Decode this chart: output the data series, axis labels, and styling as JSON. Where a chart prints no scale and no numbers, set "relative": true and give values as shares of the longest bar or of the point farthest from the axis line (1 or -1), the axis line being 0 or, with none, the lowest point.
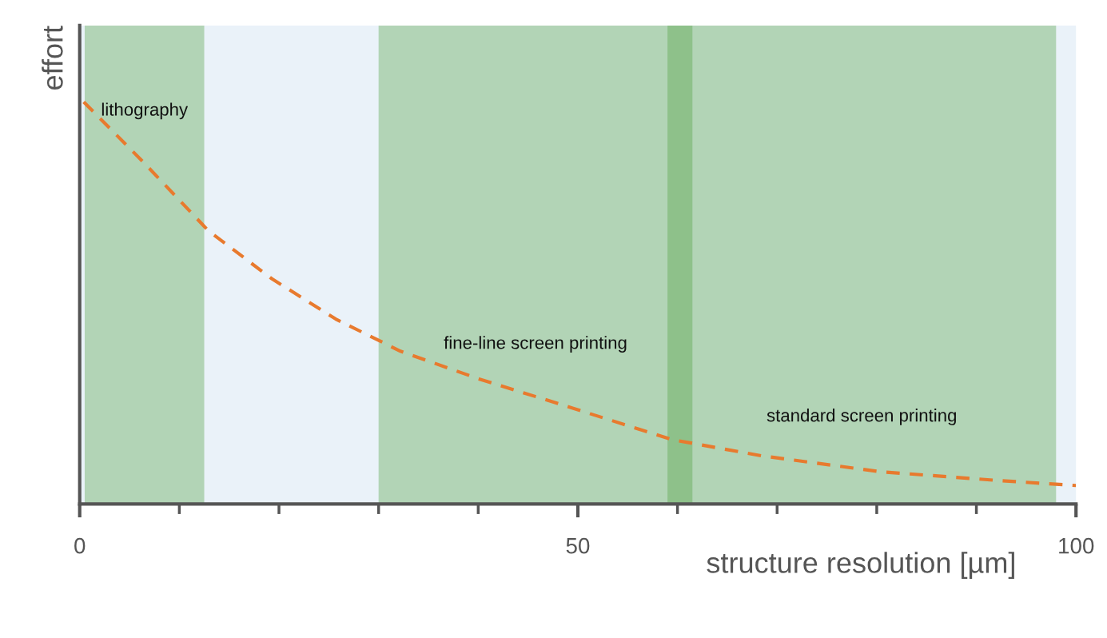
{
  "chart_data": {
    "type": "line",
    "relative": true,
    "xlabel": "structure resolution [µm]",
    "ylabel": "effort",
    "xlim": [
      0,
      100
    ],
    "xticks": [
      0,
      {
        "value": 10,
        "label": null
      },
      {
        "value": 20,
        "label": null
      },
      {
        "value": 30,
        "label": null
      },
      {
        "value": 40,
        "label": null
      },
      50,
      {
        "value": 60,
        "label": null
      },
      {
        "value": 70,
        "label": null
      },
      {
        "value": 80,
        "label": null
      },
      {
        "value": 90,
        "label": null
      },
      100
    ],
    "series": [
      {
        "color": "#e87a2e",
        "x": [
          0.4,
          6.4,
          12.9,
          19.3,
          25.7,
          32.2,
          40.2,
          46.7,
          53.1,
          59.5,
          68.4,
          80.5,
          92.5,
          100
        ],
        "values": [
          1.0,
          0.85,
          0.68,
          0.56,
          0.46,
          0.38,
          0.31,
          0.26,
          0.21,
          0.16,
          0.12,
          0.08,
          0.058,
          0.046
        ]
      }
    ],
    "bands": [
      {
        "axis": "x",
        "from": 0.5,
        "to": 12.5,
        "label": "lithography",
        "color": "#4a9e3a"
      },
      {
        "axis": "x",
        "from": 30,
        "to": 61.5,
        "label": "fine-line screen printing",
        "color": "#4a9e3a"
      },
      {
        "axis": "x",
        "from": 59,
        "to": 98,
        "label": "standard screen printing",
        "color": "#4a9e3a"
      }
    ],
    "line_style": "dashed",
    "marker": "none",
    "grid": false
  }
}
